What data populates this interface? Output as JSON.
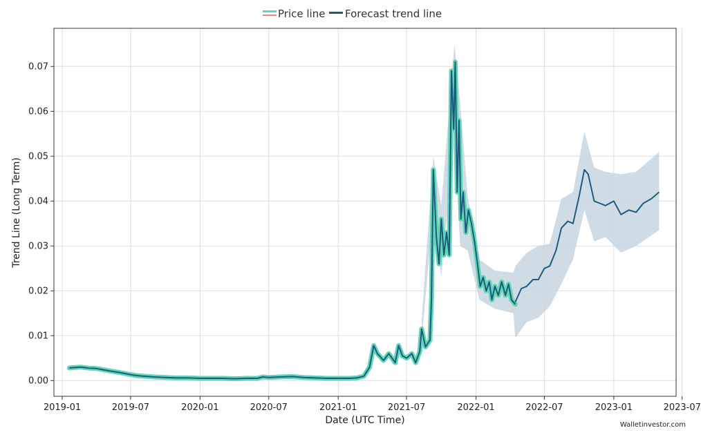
{
  "watermark": "Walletinvestor.com",
  "chart_data": {
    "type": "line",
    "title": "",
    "xlabel": "Date (UTC Time)",
    "ylabel": "Trend Line (Long Term)",
    "x_tick_labels": [
      "2019-01",
      "2019-07",
      "2020-01",
      "2020-07",
      "2021-01",
      "2021-07",
      "2022-01",
      "2022-07",
      "2023-01",
      "2023-07"
    ],
    "y_tick_labels": [
      "0.00",
      "0.01",
      "0.02",
      "0.03",
      "0.04",
      "0.05",
      "0.06",
      "0.07"
    ],
    "y_ticks": [
      0,
      0.01,
      0.02,
      0.03,
      0.04,
      0.05,
      0.06,
      0.07
    ],
    "xlim": [
      "2018-12-10",
      "2023-06-15"
    ],
    "ylim": [
      -0.0035,
      0.0785
    ],
    "grid": true,
    "legend_position": "top-center",
    "colors": {
      "price_line": "#5fd6b4",
      "price_line_alt": "#f08a6e",
      "trend": "#1f5a7e",
      "band": "#c8d6e0",
      "grid": "#dddddd"
    },
    "series": [
      {
        "name": "Price line",
        "values": [
          [
            "2019-01-20",
            0.0028
          ],
          [
            "2019-02-01",
            0.0029
          ],
          [
            "2019-02-20",
            0.003
          ],
          [
            "2019-03-10",
            0.0028
          ],
          [
            "2019-04-01",
            0.0027
          ],
          [
            "2019-04-20",
            0.0024
          ],
          [
            "2019-05-10",
            0.0021
          ],
          [
            "2019-06-01",
            0.0018
          ],
          [
            "2019-06-20",
            0.0015
          ],
          [
            "2019-07-10",
            0.0012
          ],
          [
            "2019-08-01",
            0.001
          ],
          [
            "2019-09-01",
            0.0008
          ],
          [
            "2019-10-01",
            0.0007
          ],
          [
            "2019-11-01",
            0.0006
          ],
          [
            "2019-12-01",
            0.0006
          ],
          [
            "2020-01-01",
            0.0005
          ],
          [
            "2020-02-01",
            0.0005
          ],
          [
            "2020-03-01",
            0.0005
          ],
          [
            "2020-04-01",
            0.0004
          ],
          [
            "2020-05-01",
            0.0005
          ],
          [
            "2020-06-01",
            0.0005
          ],
          [
            "2020-06-15",
            0.0008
          ],
          [
            "2020-07-01",
            0.0007
          ],
          [
            "2020-08-01",
            0.0008
          ],
          [
            "2020-09-01",
            0.0009
          ],
          [
            "2020-10-01",
            0.0007
          ],
          [
            "2020-11-01",
            0.0006
          ],
          [
            "2020-12-01",
            0.0005
          ],
          [
            "2021-01-01",
            0.0005
          ],
          [
            "2021-02-01",
            0.0005
          ],
          [
            "2021-02-20",
            0.0006
          ],
          [
            "2021-03-10",
            0.001
          ],
          [
            "2021-03-25",
            0.003
          ],
          [
            "2021-04-05",
            0.0078
          ],
          [
            "2021-04-15",
            0.006
          ],
          [
            "2021-05-01",
            0.0045
          ],
          [
            "2021-05-15",
            0.006
          ],
          [
            "2021-06-01",
            0.004
          ],
          [
            "2021-06-10",
            0.0078
          ],
          [
            "2021-06-20",
            0.0055
          ],
          [
            "2021-07-01",
            0.005
          ],
          [
            "2021-07-15",
            0.006
          ],
          [
            "2021-07-25",
            0.004
          ],
          [
            "2021-08-05",
            0.0065
          ],
          [
            "2021-08-10",
            0.0115
          ],
          [
            "2021-08-20",
            0.0075
          ],
          [
            "2021-09-01",
            0.009
          ],
          [
            "2021-09-05",
            0.018
          ],
          [
            "2021-09-10",
            0.047
          ],
          [
            "2021-09-18",
            0.032
          ],
          [
            "2021-09-25",
            0.026
          ],
          [
            "2021-10-01",
            0.036
          ],
          [
            "2021-10-08",
            0.028
          ],
          [
            "2021-10-15",
            0.033
          ],
          [
            "2021-10-22",
            0.028
          ],
          [
            "2021-10-28",
            0.069
          ],
          [
            "2021-11-03",
            0.056
          ],
          [
            "2021-11-07",
            0.071
          ],
          [
            "2021-11-12",
            0.042
          ],
          [
            "2021-11-17",
            0.058
          ],
          [
            "2021-11-22",
            0.036
          ],
          [
            "2021-11-28",
            0.042
          ],
          [
            "2021-12-05",
            0.033
          ],
          [
            "2021-12-12",
            0.038
          ],
          [
            "2021-12-20",
            0.035
          ],
          [
            "2021-12-28",
            0.031
          ],
          [
            "2022-01-05",
            0.026
          ],
          [
            "2022-01-12",
            0.021
          ],
          [
            "2022-01-20",
            0.023
          ],
          [
            "2022-01-28",
            0.02
          ],
          [
            "2022-02-05",
            0.022
          ],
          [
            "2022-02-12",
            0.018
          ],
          [
            "2022-02-20",
            0.021
          ],
          [
            "2022-03-01",
            0.019
          ],
          [
            "2022-03-10",
            0.022
          ],
          [
            "2022-03-20",
            0.019
          ],
          [
            "2022-03-28",
            0.0215
          ],
          [
            "2022-04-05",
            0.018
          ],
          [
            "2022-04-15",
            0.017
          ]
        ]
      },
      {
        "name": "Forecast trend line",
        "values": [
          [
            "2022-04-15",
            0.0175
          ],
          [
            "2022-05-01",
            0.0205
          ],
          [
            "2022-05-15",
            0.021
          ],
          [
            "2022-06-01",
            0.0225
          ],
          [
            "2022-06-15",
            0.0225
          ],
          [
            "2022-07-01",
            0.025
          ],
          [
            "2022-07-15",
            0.0255
          ],
          [
            "2022-08-01",
            0.029
          ],
          [
            "2022-08-15",
            0.034
          ],
          [
            "2022-09-01",
            0.0355
          ],
          [
            "2022-09-15",
            0.035
          ],
          [
            "2022-10-01",
            0.041
          ],
          [
            "2022-10-15",
            0.047
          ],
          [
            "2022-10-25",
            0.046
          ],
          [
            "2022-11-10",
            0.04
          ],
          [
            "2022-11-25",
            0.0395
          ],
          [
            "2022-12-10",
            0.039
          ],
          [
            "2023-01-01",
            0.04
          ],
          [
            "2023-01-20",
            0.037
          ],
          [
            "2023-02-10",
            0.038
          ],
          [
            "2023-03-01",
            0.0375
          ],
          [
            "2023-03-20",
            0.0395
          ],
          [
            "2023-04-10",
            0.0405
          ],
          [
            "2023-05-01",
            0.042
          ]
        ]
      }
    ],
    "band": {
      "upper": [
        [
          "2021-08-10",
          0.0135
        ],
        [
          "2021-09-10",
          0.05
        ],
        [
          "2021-10-01",
          0.039
        ],
        [
          "2021-11-05",
          0.075
        ],
        [
          "2021-11-20",
          0.062
        ],
        [
          "2021-12-10",
          0.041
        ],
        [
          "2022-01-10",
          0.027
        ],
        [
          "2022-02-20",
          0.0245
        ],
        [
          "2022-04-10",
          0.024
        ],
        [
          "2022-04-15",
          0.0255
        ],
        [
          "2022-05-15",
          0.0285
        ],
        [
          "2022-06-15",
          0.03
        ],
        [
          "2022-07-15",
          0.0305
        ],
        [
          "2022-08-15",
          0.0405
        ],
        [
          "2022-09-15",
          0.042
        ],
        [
          "2022-10-15",
          0.0555
        ],
        [
          "2022-11-10",
          0.0475
        ],
        [
          "2022-12-10",
          0.0465
        ],
        [
          "2023-01-20",
          0.046
        ],
        [
          "2023-03-01",
          0.0465
        ],
        [
          "2023-05-01",
          0.051
        ]
      ],
      "lower": [
        [
          "2021-08-10",
          0.009
        ],
        [
          "2021-09-10",
          0.038
        ],
        [
          "2021-10-01",
          0.023
        ],
        [
          "2021-11-05",
          0.053
        ],
        [
          "2021-11-20",
          0.03
        ],
        [
          "2021-12-10",
          0.029
        ],
        [
          "2022-01-10",
          0.018
        ],
        [
          "2022-02-20",
          0.016
        ],
        [
          "2022-04-10",
          0.015
        ],
        [
          "2022-04-15",
          0.0095
        ],
        [
          "2022-05-15",
          0.013
        ],
        [
          "2022-06-15",
          0.014
        ],
        [
          "2022-07-15",
          0.0165
        ],
        [
          "2022-08-15",
          0.0215
        ],
        [
          "2022-09-15",
          0.027
        ],
        [
          "2022-10-15",
          0.038
        ],
        [
          "2022-11-10",
          0.031
        ],
        [
          "2022-12-10",
          0.032
        ],
        [
          "2023-01-20",
          0.0285
        ],
        [
          "2023-03-01",
          0.03
        ],
        [
          "2023-05-01",
          0.0335
        ]
      ]
    }
  }
}
